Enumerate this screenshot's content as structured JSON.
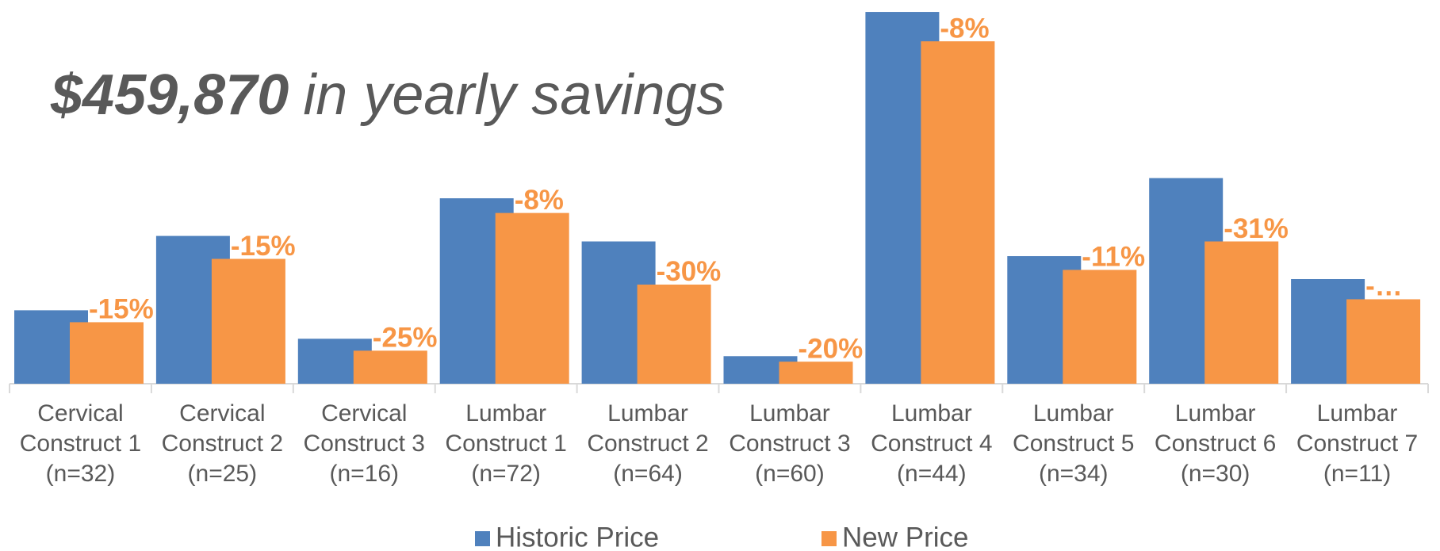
{
  "chart_data": {
    "type": "bar",
    "headline": {
      "amount": "$459,870",
      "text": "in yearly savings"
    },
    "categories": [
      "Cervical\nConstruct 1\n(n=32)",
      "Cervical\nConstruct 2\n(n=25)",
      "Cervical\nConstruct 3\n(n=16)",
      "Lumbar\nConstruct 1\n(n=72)",
      "Lumbar\nConstruct 2\n(n=64)",
      "Lumbar\nConstruct 3\n(n=60)",
      "Lumbar\nConstruct 4\n(n=44)",
      "Lumbar\nConstruct 5\n(n=34)",
      "Lumbar\nConstruct 6\n(n=30)",
      "Lumbar\nConstruct 7\n(n=11)"
    ],
    "series": [
      {
        "name": "Historic Price",
        "color": "#4f81bd",
        "values": [
          80,
          161,
          49,
          202,
          155,
          30,
          405,
          139,
          224,
          114
        ]
      },
      {
        "name": "New Price",
        "color": "#f79646",
        "values": [
          67,
          136,
          36,
          186,
          108,
          24,
          373,
          124,
          155,
          92
        ]
      }
    ],
    "change_labels": [
      "-15%",
      "-15%",
      "-25%",
      "-8%",
      "-30%",
      "-20%",
      "-8%",
      "-11%",
      "-31%",
      "-…"
    ],
    "ylim": [
      0,
      418
    ],
    "legend": "bottom"
  }
}
